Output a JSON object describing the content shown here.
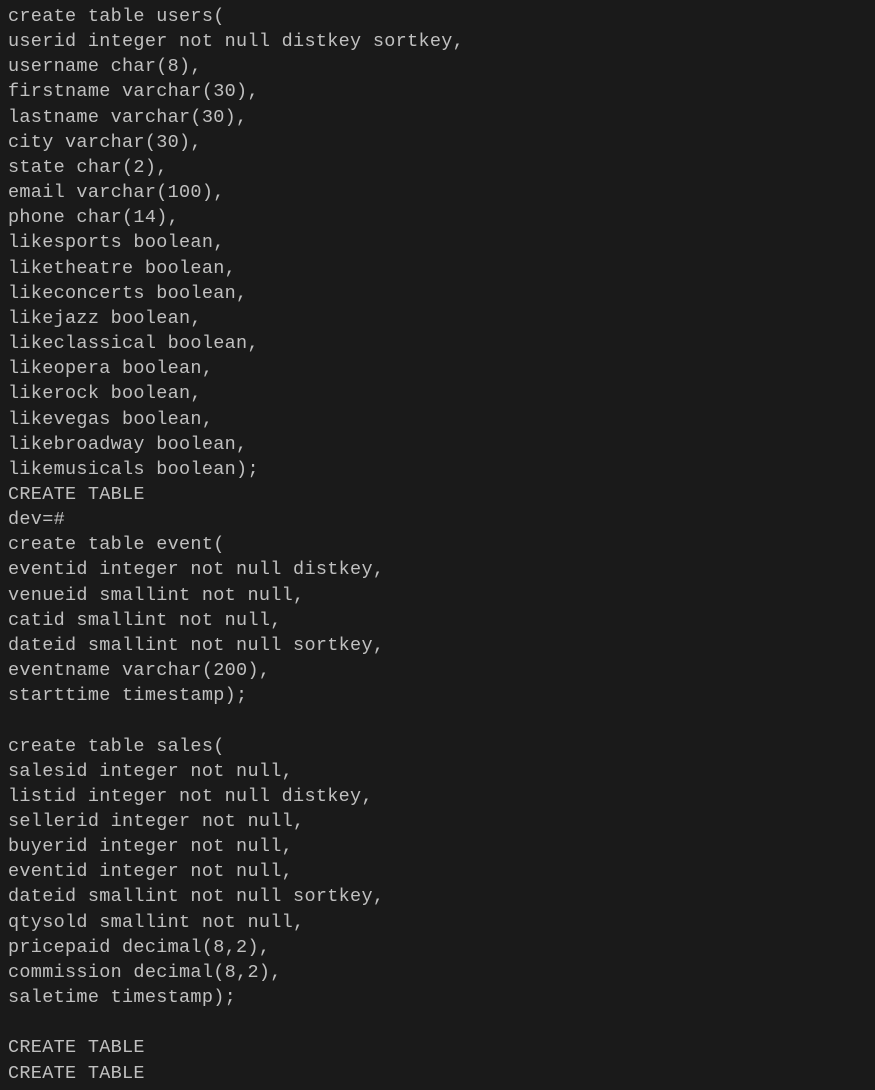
{
  "terminal": {
    "background_color": "#1a1a1a",
    "text_color": "#c0c0c0",
    "font_family": "Menlo, Monaco, Consolas, Courier New, monospace",
    "font_size": 18.5,
    "line_height": 1.36,
    "lines": [
      "create table users(",
      "userid integer not null distkey sortkey,",
      "username char(8),",
      "firstname varchar(30),",
      "lastname varchar(30),",
      "city varchar(30),",
      "state char(2),",
      "email varchar(100),",
      "phone char(14),",
      "likesports boolean,",
      "liketheatre boolean,",
      "likeconcerts boolean,",
      "likejazz boolean,",
      "likeclassical boolean,",
      "likeopera boolean,",
      "likerock boolean,",
      "likevegas boolean,",
      "likebroadway boolean,",
      "likemusicals boolean);",
      "CREATE TABLE",
      "dev=#",
      "create table event(",
      "eventid integer not null distkey,",
      "venueid smallint not null,",
      "catid smallint not null,",
      "dateid smallint not null sortkey,",
      "eventname varchar(200),",
      "starttime timestamp);",
      "",
      "create table sales(",
      "salesid integer not null,",
      "listid integer not null distkey,",
      "sellerid integer not null,",
      "buyerid integer not null,",
      "eventid integer not null,",
      "dateid smallint not null sortkey,",
      "qtysold smallint not null,",
      "pricepaid decimal(8,2),",
      "commission decimal(8,2),",
      "saletime timestamp);",
      "",
      "CREATE TABLE",
      "CREATE TABLE"
    ]
  }
}
